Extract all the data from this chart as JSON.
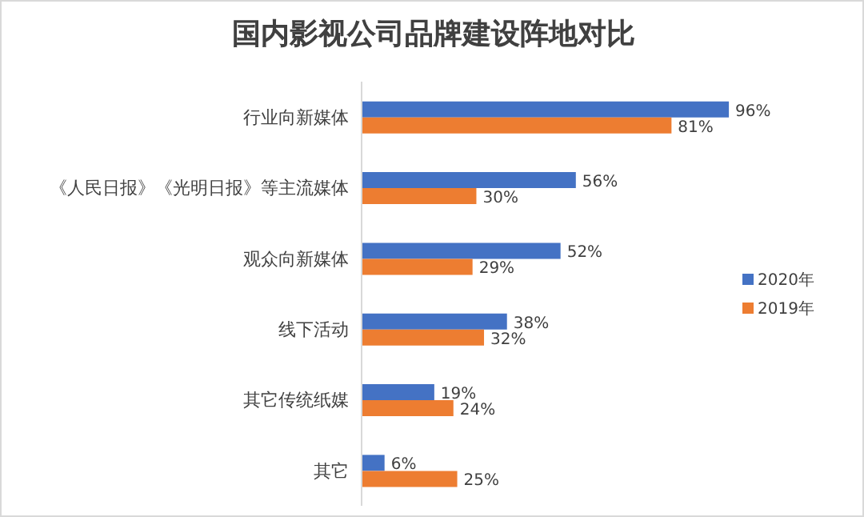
{
  "chart_data": {
    "type": "bar",
    "orientation": "horizontal",
    "title": "国内影视公司品牌建设阵地对比",
    "categories": [
      "行业向新媒体",
      "《人民日报》《光明日报》等主流媒体",
      "观众向新媒体",
      "线下活动",
      "其它传统纸媒",
      "其它"
    ],
    "series": [
      {
        "name": "2020年",
        "color": "#4472c4",
        "values": [
          96,
          56,
          52,
          38,
          19,
          6
        ],
        "value_labels": [
          "96%",
          "56%",
          "52%",
          "38%",
          "19%",
          "6%"
        ]
      },
      {
        "name": "2019年",
        "color": "#ed7d31",
        "values": [
          81,
          30,
          29,
          32,
          24,
          25
        ],
        "value_labels": [
          "81%",
          "30%",
          "29%",
          "32%",
          "24%",
          "25%"
        ]
      }
    ],
    "legend": "right"
  }
}
